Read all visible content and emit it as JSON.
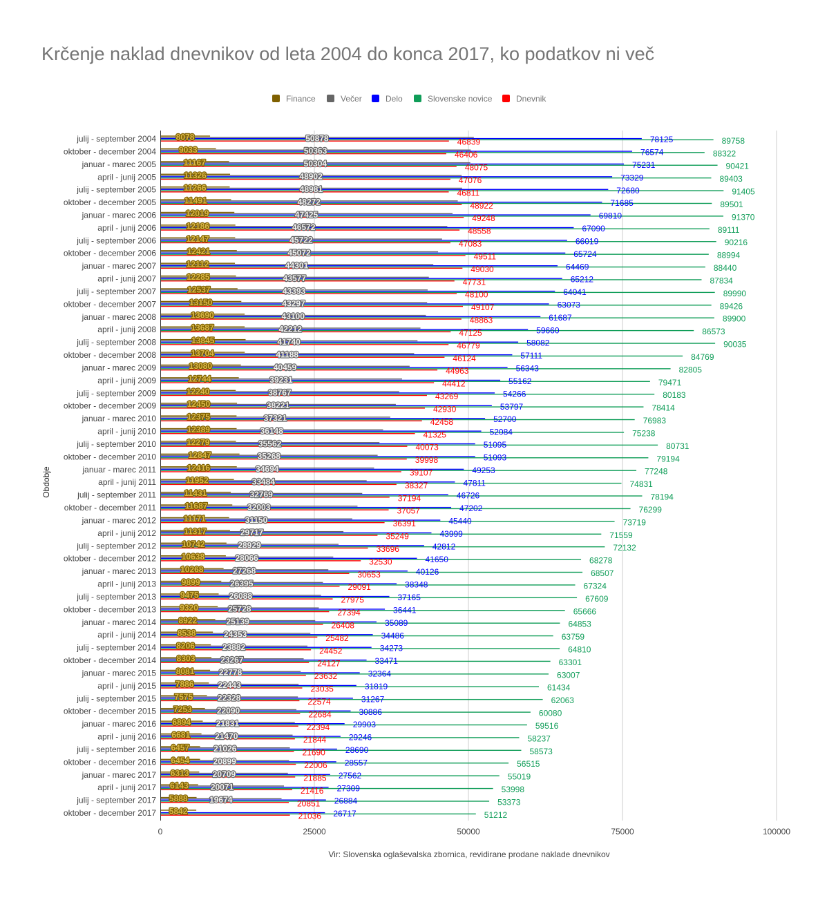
{
  "chart_data": {
    "type": "bar",
    "orientation": "horizontal",
    "title": "Krčenje naklad dnevnikov od leta 2004 do konca 2017, ko podatkov ni več",
    "xlabel": "",
    "ylabel": "Obdobje",
    "xlim": [
      0,
      100000
    ],
    "x_ticks": [
      "0",
      "25000",
      "50000",
      "75000",
      "100000"
    ],
    "grid": true,
    "legend_position": "top",
    "source_note": "Vir: Slovenska oglaševalska zbornica, revidirane prodane naklade dnevnikov",
    "categories": [
      "julij - september 2004",
      "oktober - december 2004",
      "januar - marec 2005",
      "april - junij 2005",
      "julij - september 2005",
      "oktober - december 2005",
      "januar - marec 2006",
      "april - junij 2006",
      "julij - september 2006",
      "oktober - december 2006",
      "januar - marec 2007",
      "april - junij 2007",
      "julij - september 2007",
      "oktober - december 2007",
      "januar - marec 2008",
      "april - junij 2008",
      "julij - september 2008",
      "oktober - december 2008",
      "januar - marec 2009",
      "april - junij 2009",
      "julij - september 2009",
      "oktober - december 2009",
      "januar - marec 2010",
      "april - junij 2010",
      "julij - september 2010",
      "oktober - december 2010",
      "januar - marec 2011",
      "april - junij 2011",
      "julij - september 2011",
      "oktober - december 2011",
      "januar - marec 2012",
      "april - junij 2012",
      "julij - september 2012",
      "oktober - december 2012",
      "januar - marec 2013",
      "april - junij 2013",
      "julij - september 2013",
      "oktober - december 2013",
      "januar - marec 2014",
      "april - junij 2014",
      "julij - september 2014",
      "oktober - december 2014",
      "januar - marec 2015",
      "april - junij 2015",
      "julij - september 2015",
      "oktober - december 2015",
      "januar - marec 2016",
      "april - junij 2016",
      "julij - september 2016",
      "oktober - december 2016",
      "januar - marec 2017",
      "april - junij 2017",
      "julij - september 2017",
      "oktober - december 2017"
    ],
    "series": [
      {
        "name": "Finance",
        "color": "#7f6000",
        "label_fill": "#d9b84a",
        "values": [
          8078,
          9033,
          11167,
          11326,
          11266,
          11491,
          12019,
          12186,
          12147,
          12421,
          12112,
          12285,
          12537,
          13150,
          13690,
          13687,
          13845,
          13704,
          13080,
          12744,
          12240,
          12450,
          12375,
          12389,
          12279,
          12847,
          12416,
          11952,
          11431,
          11687,
          11171,
          11317,
          10742,
          10638,
          10268,
          9899,
          9475,
          9320,
          8922,
          8538,
          8206,
          8303,
          8081,
          7886,
          7575,
          7253,
          6894,
          6681,
          6457,
          6454,
          6313,
          6143,
          5888,
          5842
        ]
      },
      {
        "name": "Večer",
        "color": "#666666",
        "label_fill": "#f2f2f2",
        "values": [
          50878,
          50363,
          50304,
          48902,
          48981,
          48272,
          47425,
          46572,
          45722,
          45072,
          44301,
          43577,
          43393,
          43297,
          43100,
          42212,
          41740,
          41188,
          40459,
          39231,
          38767,
          38221,
          37321,
          36148,
          35562,
          35268,
          34694,
          33484,
          32769,
          32003,
          31150,
          29717,
          28929,
          28066,
          27268,
          26395,
          26088,
          25728,
          25139,
          24353,
          23882,
          23267,
          22778,
          22443,
          22328,
          22090,
          21831,
          21470,
          21026,
          20899,
          20709,
          20071,
          19674,
          null
        ]
      },
      {
        "name": "Delo",
        "color": "#0000ff",
        "values": [
          78125,
          76574,
          75231,
          73329,
          72680,
          71685,
          69810,
          67090,
          66019,
          65724,
          64469,
          65212,
          64041,
          63073,
          61687,
          59660,
          58082,
          57111,
          56343,
          55162,
          54266,
          53797,
          52700,
          52084,
          51095,
          51093,
          49253,
          47811,
          46726,
          47202,
          45440,
          43999,
          42812,
          41650,
          40126,
          38348,
          37165,
          36441,
          35089,
          34486,
          34273,
          33471,
          32364,
          31819,
          31267,
          30886,
          29903,
          29246,
          28690,
          28557,
          27562,
          27309,
          26884,
          26717
        ]
      },
      {
        "name": "Slovenske novice",
        "color": "#0f9d58",
        "values": [
          89758,
          88322,
          90421,
          89403,
          91405,
          89501,
          91370,
          89111,
          90216,
          88994,
          88440,
          87834,
          89990,
          89426,
          89900,
          86573,
          90035,
          84769,
          82805,
          79471,
          80183,
          78414,
          76983,
          75238,
          80731,
          79194,
          77248,
          74831,
          78194,
          76299,
          73719,
          71559,
          72132,
          68278,
          68507,
          67324,
          67609,
          65666,
          64853,
          63759,
          64810,
          63301,
          63007,
          61434,
          62063,
          60080,
          59516,
          58237,
          58573,
          56515,
          55019,
          53998,
          53373,
          51212
        ]
      },
      {
        "name": "Dnevnik",
        "color": "#ff0000",
        "values": [
          46839,
          46406,
          48075,
          47076,
          46811,
          48922,
          49248,
          48558,
          47083,
          49511,
          49030,
          47731,
          48100,
          49107,
          48863,
          47125,
          46779,
          46124,
          44963,
          44412,
          43269,
          42930,
          42458,
          41325,
          40073,
          39998,
          39107,
          38327,
          37194,
          37057,
          36391,
          35249,
          33696,
          32530,
          30653,
          29091,
          27975,
          27394,
          26408,
          25482,
          24452,
          24127,
          23632,
          23035,
          22574,
          22684,
          22394,
          21844,
          21690,
          22006,
          21885,
          21416,
          20851,
          21036
        ]
      }
    ]
  }
}
